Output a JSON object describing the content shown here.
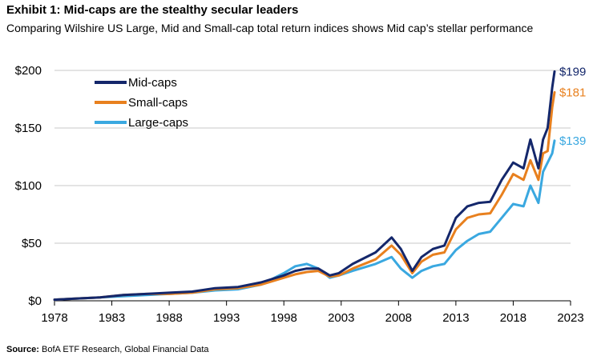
{
  "header": {
    "title": "Exhibit 1:  Mid-caps are the stealthy secular leaders",
    "subtitle": "Comparing Wilshire US Large, Mid and Small-cap total return indices shows Mid cap’s stellar performance"
  },
  "footer": {
    "source_label": "Source:",
    "source_text": "BofA ETF Research, Global Financial Data"
  },
  "chart_data": {
    "type": "line",
    "title": "Exhibit 1:  Mid-caps are the stealthy secular leaders",
    "subtitle": "Comparing Wilshire US Large, Mid and Small-cap total return indices shows Mid cap’s stellar performance",
    "xlabel": "",
    "ylabel": "",
    "xlim": [
      1978,
      2023
    ],
    "ylim": [
      0,
      200
    ],
    "x_ticks": [
      1978,
      1983,
      1988,
      1993,
      1998,
      2003,
      2008,
      2013,
      2018,
      2023
    ],
    "x_tick_labels": [
      "1978",
      "1983",
      "1988",
      "1993",
      "1998",
      "2003",
      "2008",
      "2013",
      "2018",
      "2023"
    ],
    "y_ticks": [
      0,
      50,
      100,
      150,
      200
    ],
    "y_tick_labels": [
      "$0",
      "$50",
      "$100",
      "$150",
      "$200"
    ],
    "grid": {
      "horizontal": true,
      "vertical": false
    },
    "legend_position": "top-left",
    "series": [
      {
        "name": "Mid-caps",
        "color": "#14276b",
        "end_label": "$199",
        "x": [
          1978,
          1980,
          1982,
          1984,
          1986,
          1988,
          1990,
          1992,
          1994,
          1996,
          1998,
          1999,
          2000,
          2001,
          2002,
          2002.8,
          2004,
          2006,
          2007.4,
          2008.2,
          2009.2,
          2010,
          2011,
          2012,
          2013,
          2014,
          2015,
          2016,
          2017,
          2018,
          2018.9,
          2019.5,
          2020.2,
          2020.6,
          2021,
          2021.4,
          2021.6
        ],
        "values": [
          1,
          2,
          3,
          5,
          6,
          7,
          8,
          11,
          12,
          16,
          22,
          26,
          28,
          28,
          22,
          24,
          32,
          42,
          55,
          45,
          26,
          38,
          45,
          48,
          72,
          82,
          85,
          86,
          105,
          120,
          115,
          140,
          115,
          140,
          150,
          185,
          199
        ]
      },
      {
        "name": "Small-caps",
        "color": "#e8801e",
        "end_label": "$181",
        "x": [
          1978,
          1980,
          1982,
          1984,
          1986,
          1988,
          1990,
          1992,
          1994,
          1996,
          1998,
          1999,
          2000,
          2001,
          2002,
          2002.8,
          2004,
          2006,
          2007.4,
          2008.2,
          2009.2,
          2010,
          2011,
          2012,
          2013,
          2014,
          2015,
          2016,
          2017,
          2018,
          2018.9,
          2019.5,
          2020.2,
          2020.6,
          2021,
          2021.4,
          2021.6
        ],
        "values": [
          1,
          2,
          3,
          5,
          6,
          6,
          7,
          10,
          11,
          14,
          20,
          23,
          25,
          26,
          21,
          22,
          28,
          36,
          48,
          40,
          24,
          34,
          40,
          42,
          62,
          72,
          75,
          76,
          92,
          110,
          105,
          122,
          105,
          128,
          130,
          168,
          181
        ]
      },
      {
        "name": "Large-caps",
        "color": "#3aa8e0",
        "end_label": "$139",
        "x": [
          1978,
          1980,
          1982,
          1984,
          1986,
          1988,
          1990,
          1992,
          1994,
          1996,
          1998,
          1999,
          2000,
          2001,
          2002,
          2002.8,
          2004,
          2006,
          2007.4,
          2008.2,
          2009.2,
          2010,
          2011,
          2012,
          2013,
          2014,
          2015,
          2016,
          2017,
          2018,
          2018.9,
          2019.5,
          2020.2,
          2020.6,
          2021,
          2021.4,
          2021.6
        ],
        "values": [
          1,
          2,
          3,
          4,
          5,
          6,
          7,
          9,
          10,
          14,
          24,
          30,
          32,
          28,
          20,
          22,
          26,
          32,
          38,
          28,
          20,
          26,
          30,
          32,
          44,
          52,
          58,
          60,
          72,
          84,
          82,
          100,
          85,
          112,
          120,
          128,
          139
        ]
      }
    ]
  }
}
